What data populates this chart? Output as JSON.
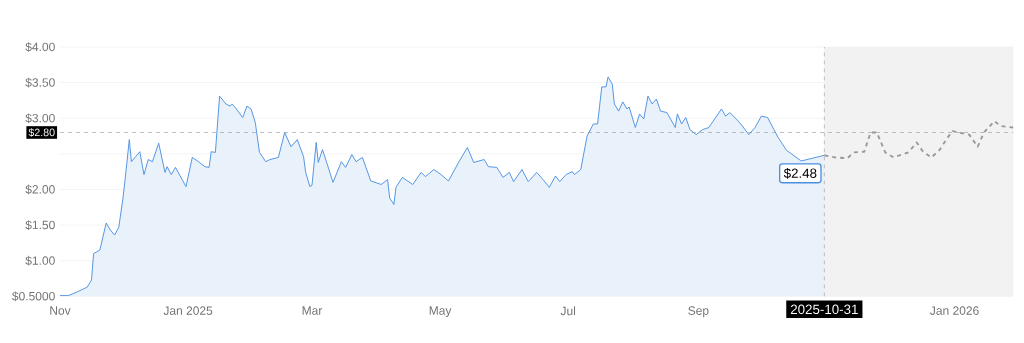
{
  "chart_data": {
    "type": "area",
    "xlim": [
      "2024-11-01",
      "2026-01-29"
    ],
    "xticks": [
      {
        "value": "2024-11-01",
        "label": "Nov"
      },
      {
        "value": "2025-01-01",
        "label": "Jan 2025"
      },
      {
        "value": "2025-03-01",
        "label": "Mar"
      },
      {
        "value": "2025-05-01",
        "label": "May"
      },
      {
        "value": "2025-07-01",
        "label": "Jul"
      },
      {
        "value": "2025-09-01",
        "label": "Sep"
      },
      {
        "value": "2026-01-01",
        "label": "Jan 2026"
      }
    ],
    "ylim": [
      0.5,
      4.0
    ],
    "yticks": [
      {
        "value": 0.5,
        "label": "$0.5000"
      },
      {
        "value": 1.0,
        "label": "$1.00"
      },
      {
        "value": 1.5,
        "label": "$1.50"
      },
      {
        "value": 2.0,
        "label": "$2.00"
      },
      {
        "value": 2.5,
        "label": null
      },
      {
        "value": 3.0,
        "label": "$3.00"
      },
      {
        "value": 3.5,
        "label": "$3.50"
      },
      {
        "value": 4.0,
        "label": "$4.00"
      }
    ],
    "grid": "y",
    "bands": [
      {
        "axis": "x",
        "from": "2025-10-31",
        "to": "2026-01-29",
        "color": "#f2f2f2"
      }
    ],
    "ref_lines": [
      {
        "axis": "y",
        "value": 2.8,
        "label": "$2.80",
        "color": "#888888",
        "line_style": "dashed"
      },
      {
        "axis": "x",
        "value": "2025-10-31",
        "label": "2025-10-31",
        "color": "#888888",
        "line_style": "dashed"
      }
    ],
    "annotations": [
      {
        "text": "$2.48",
        "x": "2025-10-31",
        "y": 2.48
      }
    ],
    "series": [
      {
        "color": "#4a8fe0",
        "x": [
          "2024-11-01",
          "2024-11-05",
          "2024-11-09",
          "2024-11-14",
          "2024-11-16",
          "2024-11-17",
          "2024-11-20",
          "2024-11-23",
          "2024-11-25",
          "2024-11-27",
          "2024-11-29",
          "2024-12-01",
          "2024-12-02",
          "2024-12-04",
          "2024-12-05",
          "2024-12-09",
          "2024-12-11",
          "2024-12-13",
          "2024-12-15",
          "2024-12-18",
          "2024-12-21",
          "2024-12-22",
          "2024-12-24",
          "2024-12-26",
          "2024-12-31",
          "2025-01-03",
          "2025-01-06",
          "2025-01-09",
          "2025-01-11",
          "2025-01-12",
          "2025-01-14",
          "2025-01-16",
          "2025-01-19",
          "2025-01-21",
          "2025-01-22",
          "2025-01-24",
          "2025-01-27",
          "2025-01-29",
          "2025-01-31",
          "2025-02-02",
          "2025-02-04",
          "2025-02-07",
          "2025-02-09",
          "2025-02-13",
          "2025-02-16",
          "2025-02-19",
          "2025-02-22",
          "2025-02-25",
          "2025-02-26",
          "2025-02-28",
          "2025-03-01",
          "2025-03-03",
          "2025-03-04",
          "2025-03-06",
          "2025-03-08",
          "2025-03-11",
          "2025-03-15",
          "2025-03-17",
          "2025-03-20",
          "2025-03-22",
          "2025-03-25",
          "2025-03-29",
          "2025-04-03",
          "2025-04-06",
          "2025-04-07",
          "2025-04-09",
          "2025-04-10",
          "2025-04-13",
          "2025-04-18",
          "2025-04-22",
          "2025-04-24",
          "2025-04-28",
          "2025-05-01",
          "2025-05-05",
          "2025-05-10",
          "2025-05-14",
          "2025-05-17",
          "2025-05-22",
          "2025-05-24",
          "2025-05-28",
          "2025-05-31",
          "2025-06-03",
          "2025-06-05",
          "2025-06-09",
          "2025-06-12",
          "2025-06-16",
          "2025-06-19",
          "2025-06-22",
          "2025-06-25",
          "2025-06-27",
          "2025-06-30",
          "2025-07-03",
          "2025-07-04",
          "2025-07-07",
          "2025-07-10",
          "2025-07-13",
          "2025-07-15",
          "2025-07-17",
          "2025-07-19",
          "2025-07-20",
          "2025-07-22",
          "2025-07-23",
          "2025-07-25",
          "2025-07-27",
          "2025-07-29",
          "2025-07-30",
          "2025-08-02",
          "2025-08-04",
          "2025-08-06",
          "2025-08-08",
          "2025-08-10",
          "2025-08-12",
          "2025-08-14",
          "2025-08-17",
          "2025-08-21",
          "2025-08-22",
          "2025-08-24",
          "2025-08-26",
          "2025-08-28",
          "2025-08-31",
          "2025-09-03",
          "2025-09-06",
          "2025-09-12",
          "2025-09-14",
          "2025-09-16",
          "2025-09-20",
          "2025-09-22",
          "2025-09-25",
          "2025-09-28",
          "2025-10-01",
          "2025-10-04",
          "2025-10-07",
          "2025-10-09",
          "2025-10-13",
          "2025-10-20",
          "2025-10-31"
        ],
        "values": [
          0.51,
          0.51,
          0.56,
          0.63,
          0.73,
          1.1,
          1.15,
          1.53,
          1.43,
          1.36,
          1.47,
          1.88,
          2.14,
          2.7,
          2.39,
          2.53,
          2.21,
          2.42,
          2.39,
          2.65,
          2.24,
          2.32,
          2.21,
          2.31,
          2.04,
          2.45,
          2.39,
          2.32,
          2.31,
          2.53,
          2.52,
          3.31,
          3.2,
          3.17,
          3.2,
          3.13,
          3.01,
          3.17,
          3.13,
          2.94,
          2.52,
          2.39,
          2.42,
          2.45,
          2.8,
          2.6,
          2.7,
          2.46,
          2.24,
          2.04,
          2.06,
          2.66,
          2.38,
          2.56,
          2.38,
          2.1,
          2.39,
          2.31,
          2.49,
          2.39,
          2.45,
          2.12,
          2.07,
          2.14,
          1.88,
          1.79,
          2.03,
          2.17,
          2.07,
          2.24,
          2.18,
          2.28,
          2.22,
          2.12,
          2.39,
          2.59,
          2.38,
          2.42,
          2.32,
          2.31,
          2.17,
          2.24,
          2.11,
          2.28,
          2.11,
          2.24,
          2.14,
          2.03,
          2.19,
          2.11,
          2.21,
          2.25,
          2.21,
          2.28,
          2.75,
          2.92,
          2.92,
          3.44,
          3.44,
          3.58,
          3.48,
          3.2,
          3.1,
          3.23,
          3.13,
          3.16,
          2.87,
          3.06,
          2.99,
          3.31,
          3.2,
          3.27,
          3.1,
          3.08,
          2.87,
          3.06,
          2.92,
          3.01,
          2.84,
          2.77,
          2.84,
          2.87,
          3.13,
          3.03,
          3.08,
          2.96,
          2.89,
          2.77,
          2.87,
          3.03,
          3.01,
          2.84,
          2.73,
          2.55,
          2.4,
          2.48
        ]
      },
      {
        "type": "line",
        "color": "#999999",
        "line_style": "dashed",
        "x": [
          "2025-10-31",
          "2025-11-05",
          "2025-11-11",
          "2025-11-14",
          "2025-11-19",
          "2025-11-22",
          "2025-11-25",
          "2025-11-29",
          "2025-12-03",
          "2025-12-10",
          "2025-12-14",
          "2025-12-17",
          "2025-12-21",
          "2025-12-25",
          "2025-12-28",
          "2025-12-31",
          "2026-01-03",
          "2026-01-08",
          "2026-01-12",
          "2026-01-15",
          "2026-01-20",
          "2026-01-23",
          "2026-01-29"
        ],
        "values": [
          2.48,
          2.45,
          2.44,
          2.52,
          2.53,
          2.8,
          2.8,
          2.52,
          2.45,
          2.52,
          2.66,
          2.53,
          2.45,
          2.56,
          2.7,
          2.82,
          2.8,
          2.77,
          2.6,
          2.8,
          2.96,
          2.89,
          2.87
        ]
      }
    ]
  }
}
